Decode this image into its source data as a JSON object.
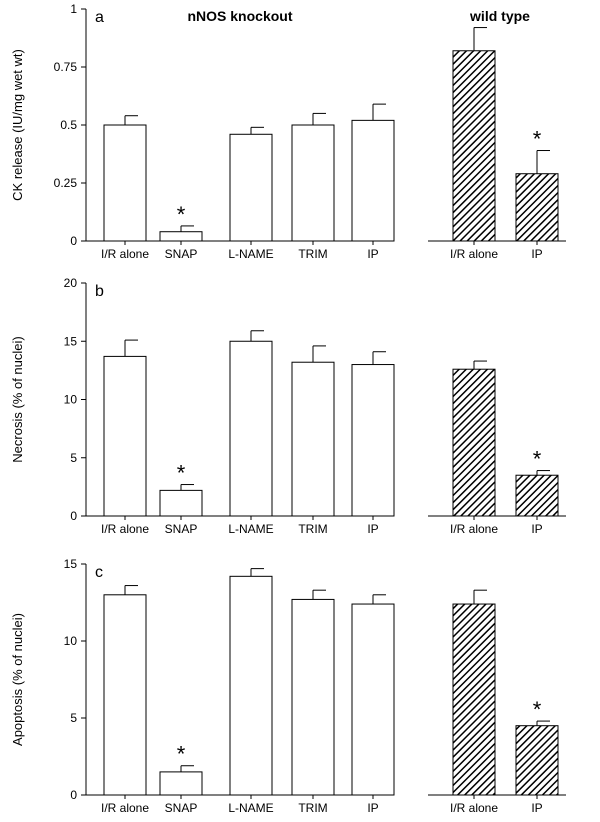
{
  "hatch_color": "#000000",
  "chart_data": [
    {
      "type": "bar",
      "panel_letter": "a",
      "ylabel": "CK release (IU/mg wet wt)",
      "ylim": [
        0,
        1
      ],
      "ytick_labels": [
        "0",
        "0.25",
        "0.5",
        "0.75",
        "1"
      ],
      "ytick_values": [
        0,
        0.25,
        0.5,
        0.75,
        1
      ],
      "groups": [
        {
          "name": "nNOS knockout",
          "fill": "open",
          "bars": [
            {
              "category": "I/R alone",
              "value": 0.5,
              "error": 0.04,
              "significant": false
            },
            {
              "category": "SNAP",
              "value": 0.04,
              "error": 0.025,
              "significant": true
            },
            {
              "category": "L-NAME",
              "value": 0.46,
              "error": 0.03,
              "significant": false
            },
            {
              "category": "TRIM",
              "value": 0.5,
              "error": 0.05,
              "significant": false
            },
            {
              "category": "IP",
              "value": 0.52,
              "error": 0.07,
              "significant": false
            }
          ]
        },
        {
          "name": "wild type",
          "fill": "hatched",
          "bars": [
            {
              "category": "I/R alone",
              "value": 0.82,
              "error": 0.1,
              "significant": false
            },
            {
              "category": "IP",
              "value": 0.29,
              "error": 0.1,
              "significant": true
            }
          ]
        }
      ]
    },
    {
      "type": "bar",
      "panel_letter": "b",
      "ylabel": "Necrosis (% of nuclei)",
      "ylim": [
        0,
        20
      ],
      "ytick_labels": [
        "0",
        "5",
        "10",
        "15",
        "20"
      ],
      "ytick_values": [
        0,
        5,
        10,
        15,
        20
      ],
      "groups": [
        {
          "name": "",
          "fill": "open",
          "bars": [
            {
              "category": "I/R alone",
              "value": 13.7,
              "error": 1.4,
              "significant": false
            },
            {
              "category": "SNAP",
              "value": 2.2,
              "error": 0.5,
              "significant": true
            },
            {
              "category": "L-NAME",
              "value": 15.0,
              "error": 0.9,
              "significant": false
            },
            {
              "category": "TRIM",
              "value": 13.2,
              "error": 1.4,
              "significant": false
            },
            {
              "category": "IP",
              "value": 13.0,
              "error": 1.1,
              "significant": false
            }
          ]
        },
        {
          "name": "",
          "fill": "hatched",
          "bars": [
            {
              "category": "I/R alone",
              "value": 12.6,
              "error": 0.7,
              "significant": false
            },
            {
              "category": "IP",
              "value": 3.5,
              "error": 0.4,
              "significant": true
            }
          ]
        }
      ]
    },
    {
      "type": "bar",
      "panel_letter": "c",
      "ylabel": "Apoptosis (% of nuclei)",
      "ylim": [
        0,
        15
      ],
      "ytick_labels": [
        "0",
        "5",
        "10",
        "15"
      ],
      "ytick_values": [
        0,
        5,
        10,
        15
      ],
      "groups": [
        {
          "name": "",
          "fill": "open",
          "bars": [
            {
              "category": "I/R alone",
              "value": 13.0,
              "error": 0.6,
              "significant": false
            },
            {
              "category": "SNAP",
              "value": 1.5,
              "error": 0.4,
              "significant": true
            },
            {
              "category": "L-NAME",
              "value": 14.2,
              "error": 0.5,
              "significant": false
            },
            {
              "category": "TRIM",
              "value": 12.7,
              "error": 0.6,
              "significant": false
            },
            {
              "category": "IP",
              "value": 12.4,
              "error": 0.6,
              "significant": false
            }
          ]
        },
        {
          "name": "",
          "fill": "hatched",
          "bars": [
            {
              "category": "I/R alone",
              "value": 12.4,
              "error": 0.9,
              "significant": false
            },
            {
              "category": "IP",
              "value": 4.5,
              "error": 0.3,
              "significant": true
            }
          ]
        }
      ]
    }
  ]
}
